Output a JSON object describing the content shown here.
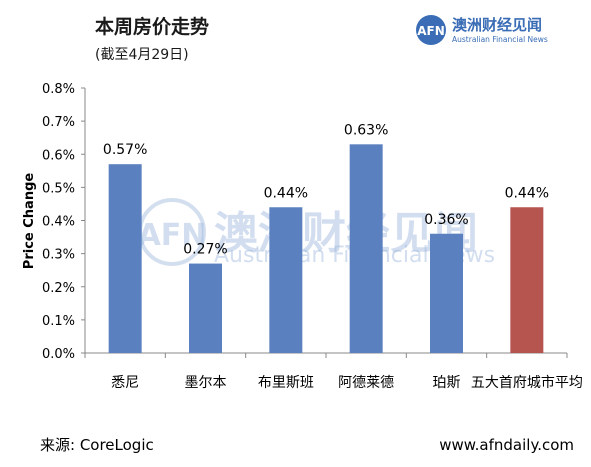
{
  "title": "本周房价走势",
  "subtitle": "(截至4月29日)",
  "brand": {
    "cn": "澳洲财经见闻",
    "en": "Australian Financial News",
    "logo": "AFN"
  },
  "watermark": {
    "cn": "澳洲财经见闻",
    "en": "Australian Financial News",
    "logo": "AFN"
  },
  "footer": {
    "source": "来源: CoreLogic",
    "url": "www.afndaily.com"
  },
  "colors": {
    "bar": "#5b80bf",
    "highlight": "#b65550",
    "brand": "#3a6db5"
  },
  "chart_data": {
    "type": "bar",
    "ylabel": "Price Change",
    "ylim": [
      0,
      0.8
    ],
    "yticks": [
      "0.0%",
      "0.1%",
      "0.2%",
      "0.3%",
      "0.4%",
      "0.5%",
      "0.6%",
      "0.7%",
      "0.8%"
    ],
    "grid": false,
    "categories": [
      "悉尼",
      "墨尔本",
      "布里斯班",
      "阿德莱德",
      "珀斯",
      "五大首府城市平均"
    ],
    "values": [
      0.57,
      0.27,
      0.44,
      0.63,
      0.36,
      0.44
    ],
    "value_labels": [
      "0.57%",
      "0.27%",
      "0.44%",
      "0.63%",
      "0.36%",
      "0.44%"
    ],
    "highlight_index": 5
  }
}
